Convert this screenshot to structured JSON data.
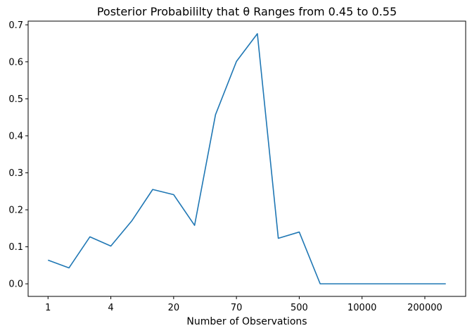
{
  "chart_data": {
    "type": "line",
    "title": "Posterior Probabililty that θ Ranges from 0.45 to 0.55",
    "xlabel": "Number of Observations",
    "ylabel": "",
    "x_tick_labels": [
      "1",
      "4",
      "20",
      "70",
      "500",
      "10000",
      "200000"
    ],
    "ylim": [
      -0.034,
      0.71
    ],
    "y_ticks": [
      0.0,
      0.1,
      0.2,
      0.3,
      0.4,
      0.5,
      0.6,
      0.7
    ],
    "y_tick_labels": [
      "0.0",
      "0.1",
      "0.2",
      "0.3",
      "0.4",
      "0.5",
      "0.6",
      "0.7"
    ],
    "grid": false,
    "series": [
      {
        "color": "#1f77b4",
        "values": [
          0.064,
          0.043,
          0.127,
          0.102,
          0.17,
          0.255,
          0.241,
          0.158,
          0.457,
          0.601,
          0.676,
          0.123,
          0.14,
          0.0,
          0.0,
          0.0,
          0.0,
          0.0,
          0.0,
          0.0
        ]
      }
    ]
  }
}
